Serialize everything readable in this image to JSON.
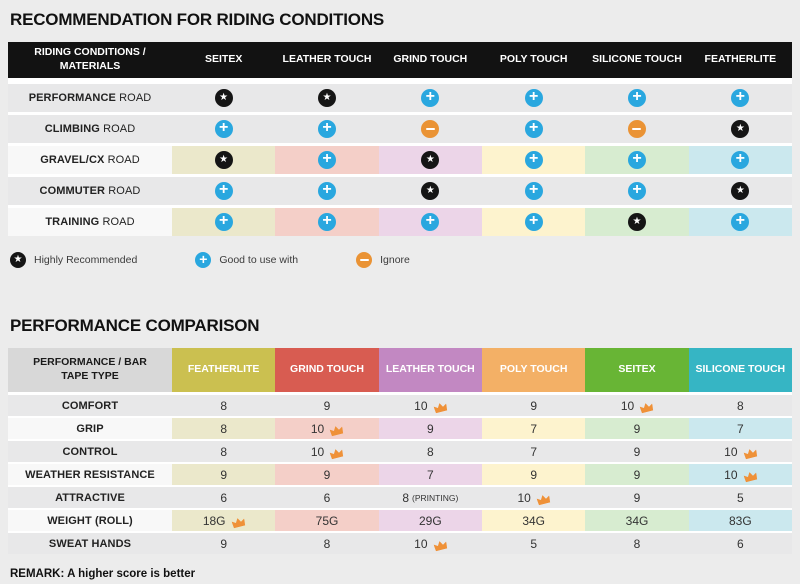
{
  "colors": {
    "page_bg": "#ececec",
    "table1_header_bg": "#121212",
    "gray_row": "#e8e8e9",
    "white_label_cell": "#f8f8f8",
    "pastels": [
      "#ebe8cb",
      "#f4cfc8",
      "#ecd5e8",
      "#fdf3ce",
      "#d7ecd0",
      "#cbe8ee"
    ],
    "icon_star": "#151515",
    "icon_plus": "#29a7df",
    "icon_minus": "#ea9335",
    "crown": "#ef9138"
  },
  "chart_data": [
    {
      "type": "table",
      "title": "RECOMMENDATION FOR RIDING CONDITIONS",
      "row_header": "RIDING CONDITIONS / MATERIALS",
      "columns": [
        "SEITEX",
        "LEATHER TOUCH",
        "GRIND TOUCH",
        "POLY TOUCH",
        "SILICONE TOUCH",
        "FEATHERLITE"
      ],
      "rows": [
        {
          "label_bold": "PERFORMANCE",
          "label_rest": " ROAD",
          "colored": false,
          "cells": [
            "star",
            "star",
            "plus",
            "plus",
            "plus",
            "plus"
          ]
        },
        {
          "label_bold": "CLIMBING",
          "label_rest": " ROAD",
          "colored": false,
          "cells": [
            "plus",
            "plus",
            "minus",
            "plus",
            "minus",
            "star"
          ]
        },
        {
          "label_bold": "GRAVEL/CX",
          "label_rest": " ROAD",
          "colored": true,
          "cells": [
            "star",
            "plus",
            "star",
            "plus",
            "plus",
            "plus"
          ]
        },
        {
          "label_bold": "COMMUTER",
          "label_rest": " ROAD",
          "colored": false,
          "cells": [
            "plus",
            "plus",
            "star",
            "plus",
            "plus",
            "star"
          ]
        },
        {
          "label_bold": "TRAINING",
          "label_rest": " ROAD",
          "colored": true,
          "cells": [
            "plus",
            "plus",
            "plus",
            "plus",
            "star",
            "plus"
          ]
        }
      ],
      "legend": [
        {
          "icon": "star",
          "label": "Highly Recommended"
        },
        {
          "icon": "plus",
          "label": "Good to use with"
        },
        {
          "icon": "minus",
          "label": "Ignore"
        }
      ]
    },
    {
      "type": "table",
      "title": "PERFORMANCE COMPARISON",
      "row_header": "PERFORMANCE / BAR TAPE TYPE",
      "columns": [
        {
          "label": "FEATHERLITE",
          "color": "#cbc050"
        },
        {
          "label": "GRIND TOUCH",
          "color": "#d85c51"
        },
        {
          "label": "LEATHER TOUCH",
          "color": "#c288c2"
        },
        {
          "label": "POLY TOUCH",
          "color": "#f3b066"
        },
        {
          "label": "SEITEX",
          "color": "#68b535"
        },
        {
          "label": "SILICONE TOUCH",
          "color": "#36b5c4"
        }
      ],
      "rows": [
        {
          "label": "COMFORT",
          "colored": false,
          "cells": [
            {
              "v": "8"
            },
            {
              "v": "9"
            },
            {
              "v": "10",
              "crown": true
            },
            {
              "v": "9"
            },
            {
              "v": "10",
              "crown": true
            },
            {
              "v": "8"
            }
          ]
        },
        {
          "label": "GRIP",
          "colored": true,
          "cells": [
            {
              "v": "8"
            },
            {
              "v": "10",
              "crown": true
            },
            {
              "v": "9"
            },
            {
              "v": "7"
            },
            {
              "v": "9"
            },
            {
              "v": "7"
            }
          ]
        },
        {
          "label": "CONTROL",
          "colored": false,
          "cells": [
            {
              "v": "8"
            },
            {
              "v": "10",
              "crown": true
            },
            {
              "v": "8"
            },
            {
              "v": "7"
            },
            {
              "v": "9"
            },
            {
              "v": "10",
              "crown": true
            }
          ]
        },
        {
          "label": "WEATHER RESISTANCE",
          "colored": true,
          "cells": [
            {
              "v": "9"
            },
            {
              "v": "9"
            },
            {
              "v": "7"
            },
            {
              "v": "9"
            },
            {
              "v": "9"
            },
            {
              "v": "10",
              "crown": true
            }
          ]
        },
        {
          "label": "ATTRACTIVE",
          "colored": false,
          "cells": [
            {
              "v": "6"
            },
            {
              "v": "6"
            },
            {
              "v": "8",
              "suffix": "(PRINTING)"
            },
            {
              "v": "10",
              "crown": true
            },
            {
              "v": "9"
            },
            {
              "v": "5"
            }
          ]
        },
        {
          "label": "WEIGHT (ROLL)",
          "colored": true,
          "cells": [
            {
              "v": "18G",
              "crown": true
            },
            {
              "v": "75G"
            },
            {
              "v": "29G"
            },
            {
              "v": "34G"
            },
            {
              "v": "34G"
            },
            {
              "v": "83G"
            }
          ]
        },
        {
          "label": "SWEAT HANDS",
          "colored": false,
          "cells": [
            {
              "v": "9"
            },
            {
              "v": "8"
            },
            {
              "v": "10",
              "crown": true
            },
            {
              "v": "5"
            },
            {
              "v": "8"
            },
            {
              "v": "6"
            }
          ]
        }
      ],
      "remark": "REMARK: A higher score is better"
    }
  ]
}
